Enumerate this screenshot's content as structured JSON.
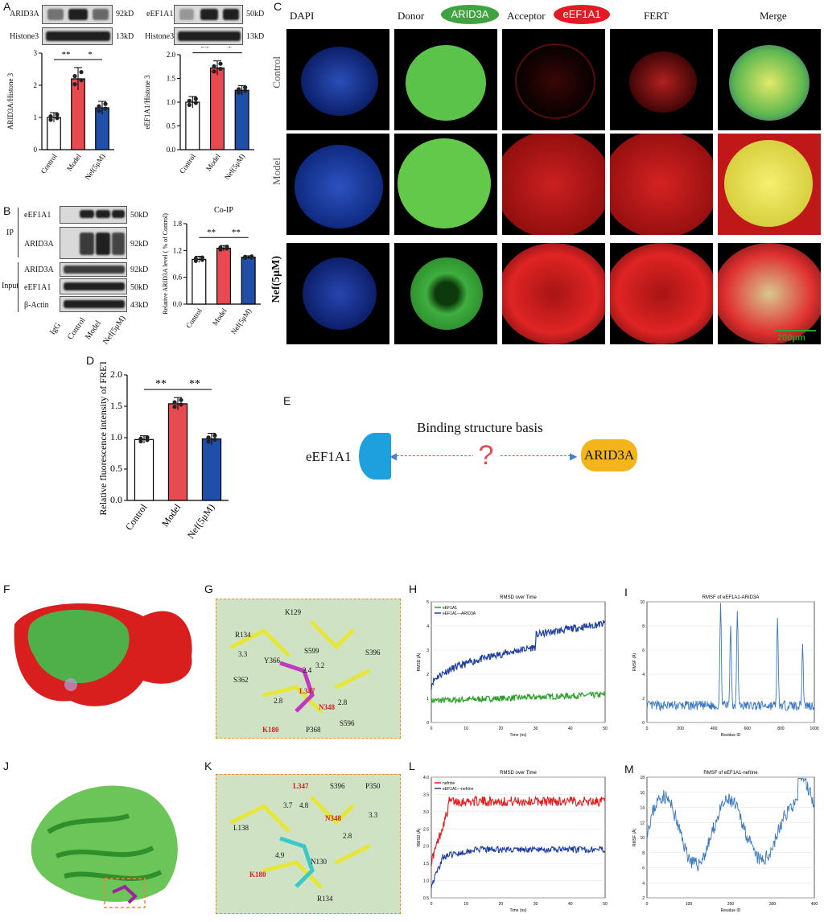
{
  "panels": {
    "A": "A",
    "B": "B",
    "C": "C",
    "D": "D",
    "E": "E",
    "F": "F",
    "G": "G",
    "H": "H",
    "I": "I",
    "J": "J",
    "K": "K",
    "L": "L",
    "M": "M"
  },
  "panelA": {
    "blot1": {
      "protein": "ARID3A",
      "kd": "92kD",
      "ctrl": "Histone3",
      "ctrl_kd": "13kD"
    },
    "blot2": {
      "protein": "eEF1A1",
      "kd": "50kD",
      "ctrl": "Histone3",
      "ctrl_kd": "13kD"
    },
    "chart1": {
      "ylabel": "ARID3A/Histone 3",
      "ticks": [
        "0",
        "1",
        "2",
        "3"
      ],
      "sig1": "**",
      "sig2": "*"
    },
    "chart2": {
      "ylabel": "eEF1A1/Histone 3",
      "ticks": [
        "0.0",
        "0.5",
        "1.0",
        "1.5",
        "2.0"
      ],
      "sig1": "**",
      "sig2": "*"
    }
  },
  "panelB": {
    "rows": [
      {
        "label": "eEF1A1",
        "kd": "50kD"
      },
      {
        "label": "ARID3A",
        "kd": "92kD"
      },
      {
        "label": "ARID3A",
        "kd": "92kD"
      },
      {
        "label": "eEF1A1",
        "kd": "50kD"
      },
      {
        "label": "β-Actin",
        "kd": "43kD"
      }
    ],
    "group_ip": "IP",
    "group_input": "Input",
    "lanes": [
      "IgG",
      "Control",
      "Model",
      "Nef(5μM)"
    ],
    "chart": {
      "title": "Co-IP",
      "ylabel": "Relative ARID3A level ( % of Control)",
      "ticks": [
        "0.0",
        "0.6",
        "1.2",
        "1.8"
      ],
      "sig1": "**",
      "sig2": "**"
    }
  },
  "panelC": {
    "cols": [
      "DAPI",
      "Donor",
      "Acceptor",
      "FERT",
      "Merge"
    ],
    "donor_badge": "ARID3A",
    "acceptor_badge": "eEF1A1",
    "rows": [
      "Control",
      "Model",
      "Nef(5μM)"
    ],
    "scale": "200μm"
  },
  "panelD": {
    "ylabel": "Relative fluorescence intensity of FRET",
    "ticks": [
      "0.0",
      "0.5",
      "1.0",
      "1.5",
      "2.0"
    ],
    "sig1": "**",
    "sig2": "**"
  },
  "panelE": {
    "left": "eEF1A1",
    "middle": "Binding structure basis",
    "mark": "?",
    "right": "ARID3A"
  },
  "panelG": {
    "labels": [
      "K129",
      "R134",
      "3.3",
      "Y366",
      "S599",
      "2.4",
      "3.2",
      "S396",
      "S362",
      "L347",
      "2.8",
      "N348",
      "2.8",
      "S596",
      "K180",
      "P368"
    ]
  },
  "panelH": {
    "title": "RMSD over Time",
    "legend": [
      "eEF1A1",
      "eEF1A1—ARID3A"
    ],
    "xlabel": "Time (ns)",
    "ylabel": "RMSD (Å)",
    "xticks": [
      "0",
      "10",
      "20",
      "30",
      "40",
      "50"
    ],
    "yticks": [
      "0",
      "1",
      "2",
      "3",
      "4",
      "5"
    ]
  },
  "panelI": {
    "title": "RMSF of eEF1A1-ARID3A",
    "xlabel": "Residue ID",
    "ylabel": "RMSF (Å)",
    "xticks": [
      "0",
      "200",
      "400",
      "600",
      "800",
      "1000"
    ],
    "yticks": [
      "0",
      "2",
      "4",
      "6",
      "8",
      "10"
    ]
  },
  "panelK": {
    "labels": [
      "L347",
      "S396",
      "P350",
      "3.7",
      "4.8",
      "N348",
      "3.3",
      "L138",
      "2.8",
      "4.9",
      "N130",
      "K180",
      "R134"
    ]
  },
  "panelL": {
    "title": "RMSD over Time",
    "legend": [
      "nefrine",
      "eEF1A1—nefrine"
    ],
    "xlabel": "Time (ns)",
    "ylabel": "RMSD (Å)",
    "xticks": [
      "0",
      "10",
      "20",
      "30",
      "40",
      "50"
    ],
    "yticks": [
      "0.5",
      "1.0",
      "1.5",
      "2.0",
      "2.5",
      "3.0",
      "3.5",
      "4.0"
    ]
  },
  "panelM": {
    "title": "RMSF of eEF1A1-nefrine",
    "xlabel": "Residue ID",
    "ylabel": "RMSF (Å)",
    "xticks": [
      "0",
      "100",
      "200",
      "300",
      "400"
    ],
    "yticks": [
      "2",
      "4",
      "6",
      "8",
      "10",
      "12",
      "14",
      "16",
      "18"
    ]
  },
  "groups": [
    "Control",
    "Model",
    "Nef(5μM)"
  ],
  "colors": {
    "control": "#ffffff",
    "model": "#e84a52",
    "nef": "#1f4fa8",
    "green": "#2aa02a",
    "blue": "#1f3fa0",
    "red": "#e02020"
  },
  "chart_data": [
    {
      "type": "bar",
      "title": "",
      "categories": [
        "Control",
        "Model",
        "Nef(5μM)"
      ],
      "values": [
        1.0,
        2.2,
        1.3
      ],
      "errors": [
        0.15,
        0.35,
        0.2
      ],
      "ylabel": "ARID3A/Histone 3",
      "ylim": [
        0,
        3
      ]
    },
    {
      "type": "bar",
      "title": "",
      "categories": [
        "Control",
        "Model",
        "Nef(5μM)"
      ],
      "values": [
        1.0,
        1.72,
        1.25
      ],
      "errors": [
        0.12,
        0.15,
        0.1
      ],
      "ylabel": "eEF1A1/Histone 3",
      "ylim": [
        0,
        2
      ]
    },
    {
      "type": "bar",
      "title": "Co-IP",
      "categories": [
        "Control",
        "Model",
        "Nef(5μM)"
      ],
      "values": [
        1.0,
        1.25,
        1.05
      ],
      "errors": [
        0.07,
        0.06,
        0.03
      ],
      "ylabel": "Relative ARID3A level ( % of Control)",
      "ylim": [
        0,
        1.8
      ]
    },
    {
      "type": "bar",
      "title": "",
      "categories": [
        "Control",
        "Model",
        "Nef(5μM)"
      ],
      "values": [
        0.97,
        1.54,
        0.98
      ],
      "errors": [
        0.06,
        0.1,
        0.09
      ],
      "ylabel": "Relative fluorescence intensity of FRET",
      "ylim": [
        0,
        2
      ]
    }
  ]
}
